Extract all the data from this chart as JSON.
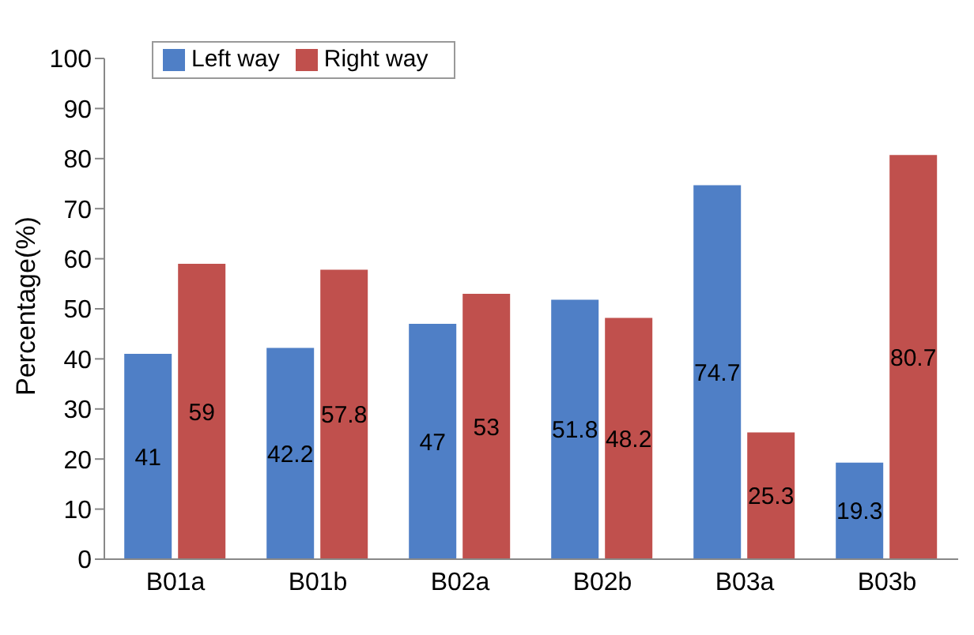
{
  "chart_data": {
    "type": "bar",
    "ylabel": "Percentage(%)",
    "categories": [
      "B01a",
      "B01b",
      "B02a",
      "B02b",
      "B03a",
      "B03b"
    ],
    "series": [
      {
        "name": "Left way",
        "color": "#4f7fc6",
        "values": [
          41,
          42.2,
          47,
          51.8,
          74.7,
          19.3
        ]
      },
      {
        "name": "Right way",
        "color": "#c0504d",
        "values": [
          59,
          57.8,
          53,
          48.2,
          25.3,
          80.7
        ]
      }
    ],
    "ylim": [
      0,
      100
    ],
    "yticks": [
      0,
      10,
      20,
      30,
      40,
      50,
      60,
      70,
      80,
      90,
      100
    ],
    "grid": false,
    "legend": "top left",
    "data_labels": true
  }
}
